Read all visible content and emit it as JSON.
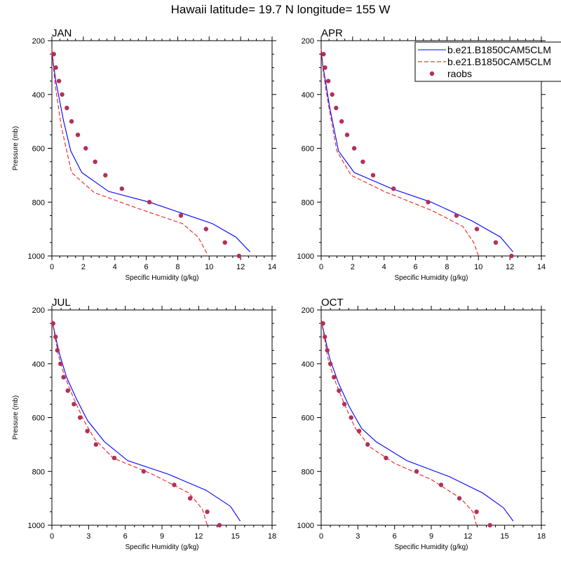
{
  "title": "Hawaii  latitude= 19.7 N longitude= 155 W",
  "legend": {
    "placement": "top-right, overlapping APR panel",
    "entries": [
      {
        "label": "b.e21.B1850CAM5CLM",
        "style": "solid-line",
        "color": "#0000ff"
      },
      {
        "label": "b.e21.B1850CAM5CLM",
        "style": "dashed-line",
        "color": "#ff0000"
      },
      {
        "label": "raobs",
        "style": "dots",
        "color": "#b33058"
      }
    ]
  },
  "colors": {
    "model1": "#0000ff",
    "model2": "#ee2222",
    "raobs": "#b33058"
  },
  "chart_data": [
    {
      "type": "line",
      "panel_label": "JAN",
      "xlabel": "Specific Humidity (g/kg)",
      "ylabel": "Pressure (mb)",
      "xlim": [
        0,
        14
      ],
      "ylim": [
        200,
        1000
      ],
      "y_inverted": true,
      "xticks": [
        0,
        2,
        4,
        6,
        8,
        10,
        12,
        14
      ],
      "yticks": [
        200,
        400,
        600,
        800,
        1000
      ],
      "series": [
        {
          "style": "solid",
          "color": "#0000ff",
          "points": [
            [
              0.0,
              230
            ],
            [
              0.08,
              280
            ],
            [
              0.25,
              350
            ],
            [
              0.45,
              410
            ],
            [
              0.75,
              500
            ],
            [
              1.2,
              610
            ],
            [
              1.9,
              690
            ],
            [
              3.6,
              760
            ],
            [
              6.2,
              800
            ],
            [
              10.2,
              880
            ],
            [
              11.7,
              930
            ],
            [
              12.6,
              985
            ]
          ]
        },
        {
          "style": "dashed",
          "color": "#ee2222",
          "points": [
            [
              0.0,
              230
            ],
            [
              0.08,
              290
            ],
            [
              0.2,
              360
            ],
            [
              0.35,
              420
            ],
            [
              0.6,
              520
            ],
            [
              1.25,
              690
            ],
            [
              2.7,
              765
            ],
            [
              5.8,
              830
            ],
            [
              8.3,
              880
            ],
            [
              9.3,
              930
            ],
            [
              9.9,
              995
            ]
          ]
        },
        {
          "style": "dots",
          "color": "#b33058",
          "points": [
            [
              0.12,
              250
            ],
            [
              0.25,
              300
            ],
            [
              0.45,
              350
            ],
            [
              0.65,
              400
            ],
            [
              0.95,
              450
            ],
            [
              1.25,
              500
            ],
            [
              1.65,
              550
            ],
            [
              2.15,
              600
            ],
            [
              2.75,
              650
            ],
            [
              3.4,
              700
            ],
            [
              4.45,
              750
            ],
            [
              6.2,
              800
            ],
            [
              8.2,
              850
            ],
            [
              9.8,
              900
            ],
            [
              11.0,
              950
            ],
            [
              11.9,
              1000
            ]
          ]
        }
      ]
    },
    {
      "type": "line",
      "panel_label": "APR",
      "xlabel": "Specific Humidity (g/kg)",
      "ylabel": "",
      "xlim": [
        0,
        14
      ],
      "ylim": [
        200,
        1000
      ],
      "y_inverted": true,
      "xticks": [
        0,
        2,
        4,
        6,
        8,
        10,
        12,
        14
      ],
      "yticks": [
        200,
        400,
        600,
        800,
        1000
      ],
      "series": [
        {
          "style": "solid",
          "color": "#0000ff",
          "points": [
            [
              0.0,
              230
            ],
            [
              0.1,
              290
            ],
            [
              0.3,
              360
            ],
            [
              0.55,
              450
            ],
            [
              1.1,
              610
            ],
            [
              2.1,
              690
            ],
            [
              4.5,
              750
            ],
            [
              7.0,
              800
            ],
            [
              9.6,
              870
            ],
            [
              11.4,
              930
            ],
            [
              12.2,
              985
            ]
          ]
        },
        {
          "style": "dashed",
          "color": "#ee2222",
          "points": [
            [
              0.0,
              230
            ],
            [
              0.1,
              300
            ],
            [
              0.3,
              380
            ],
            [
              0.5,
              450
            ],
            [
              1.0,
              610
            ],
            [
              1.9,
              700
            ],
            [
              4.0,
              760
            ],
            [
              7.0,
              830
            ],
            [
              9.0,
              890
            ],
            [
              9.7,
              950
            ],
            [
              10.0,
              1000
            ]
          ]
        },
        {
          "style": "dots",
          "color": "#b33058",
          "points": [
            [
              0.15,
              250
            ],
            [
              0.25,
              300
            ],
            [
              0.45,
              350
            ],
            [
              0.7,
              400
            ],
            [
              0.95,
              450
            ],
            [
              1.3,
              500
            ],
            [
              1.65,
              550
            ],
            [
              2.1,
              600
            ],
            [
              2.65,
              650
            ],
            [
              3.3,
              700
            ],
            [
              4.6,
              750
            ],
            [
              6.8,
              800
            ],
            [
              8.6,
              850
            ],
            [
              9.9,
              900
            ],
            [
              11.1,
              950
            ],
            [
              12.1,
              1000
            ]
          ]
        }
      ]
    },
    {
      "type": "line",
      "panel_label": "JUL",
      "xlabel": "Specific Humidity (g/kg)",
      "ylabel": "Pressure (mb)",
      "xlim": [
        0,
        18
      ],
      "ylim": [
        200,
        1000
      ],
      "y_inverted": true,
      "xticks": [
        0,
        3,
        6,
        9,
        12,
        15,
        18
      ],
      "yticks": [
        200,
        400,
        600,
        800,
        1000
      ],
      "series": [
        {
          "style": "solid",
          "color": "#0000ff",
          "points": [
            [
              0.0,
              235
            ],
            [
              0.3,
              300
            ],
            [
              0.6,
              360
            ],
            [
              1.2,
              450
            ],
            [
              2.0,
              530
            ],
            [
              2.9,
              610
            ],
            [
              4.3,
              690
            ],
            [
              6.2,
              760
            ],
            [
              9.5,
              810
            ],
            [
              12.6,
              870
            ],
            [
              14.6,
              930
            ],
            [
              15.4,
              985
            ]
          ]
        },
        {
          "style": "dashed",
          "color": "#ee2222",
          "points": [
            [
              0.0,
              235
            ],
            [
              0.25,
              300
            ],
            [
              0.55,
              370
            ],
            [
              1.0,
              440
            ],
            [
              1.7,
              520
            ],
            [
              2.6,
              610
            ],
            [
              3.5,
              680
            ],
            [
              5.0,
              750
            ],
            [
              8.2,
              810
            ],
            [
              11.2,
              880
            ],
            [
              12.3,
              940
            ],
            [
              12.7,
              1000
            ]
          ]
        },
        {
          "style": "dots",
          "color": "#b33058",
          "points": [
            [
              0.1,
              250
            ],
            [
              0.3,
              300
            ],
            [
              0.45,
              350
            ],
            [
              0.7,
              400
            ],
            [
              0.95,
              450
            ],
            [
              1.3,
              500
            ],
            [
              1.8,
              550
            ],
            [
              2.3,
              600
            ],
            [
              2.9,
              650
            ],
            [
              3.6,
              700
            ],
            [
              5.1,
              750
            ],
            [
              7.5,
              800
            ],
            [
              10.0,
              850
            ],
            [
              11.3,
              900
            ],
            [
              12.7,
              950
            ],
            [
              13.7,
              1000
            ]
          ]
        }
      ]
    },
    {
      "type": "line",
      "panel_label": "OCT",
      "xlabel": "Specific Humidity (g/kg)",
      "ylabel": "",
      "xlim": [
        0,
        18
      ],
      "ylim": [
        200,
        1000
      ],
      "y_inverted": true,
      "xticks": [
        0,
        3,
        6,
        9,
        12,
        15,
        18
      ],
      "yticks": [
        200,
        400,
        600,
        800,
        1000
      ],
      "series": [
        {
          "style": "solid",
          "color": "#0000ff",
          "points": [
            [
              0.0,
              235
            ],
            [
              0.3,
              300
            ],
            [
              0.7,
              380
            ],
            [
              1.4,
              470
            ],
            [
              2.3,
              560
            ],
            [
              3.3,
              640
            ],
            [
              4.5,
              690
            ],
            [
              7.0,
              760
            ],
            [
              10.5,
              820
            ],
            [
              13.2,
              880
            ],
            [
              14.9,
              935
            ],
            [
              15.7,
              985
            ]
          ]
        },
        {
          "style": "dashed",
          "color": "#ee2222",
          "points": [
            [
              0.0,
              235
            ],
            [
              0.25,
              300
            ],
            [
              0.6,
              390
            ],
            [
              1.1,
              460
            ],
            [
              1.9,
              550
            ],
            [
              2.8,
              640
            ],
            [
              4.0,
              710
            ],
            [
              6.0,
              770
            ],
            [
              9.0,
              830
            ],
            [
              11.4,
              900
            ],
            [
              12.4,
              950
            ],
            [
              12.7,
              1000
            ]
          ]
        },
        {
          "style": "dots",
          "color": "#b33058",
          "points": [
            [
              0.15,
              250
            ],
            [
              0.3,
              300
            ],
            [
              0.5,
              350
            ],
            [
              0.75,
              400
            ],
            [
              1.05,
              450
            ],
            [
              1.45,
              500
            ],
            [
              1.9,
              550
            ],
            [
              2.45,
              600
            ],
            [
              3.1,
              650
            ],
            [
              3.8,
              700
            ],
            [
              5.3,
              750
            ],
            [
              7.8,
              800
            ],
            [
              9.8,
              850
            ],
            [
              11.3,
              900
            ],
            [
              12.7,
              950
            ],
            [
              13.8,
              1000
            ]
          ]
        }
      ]
    }
  ]
}
